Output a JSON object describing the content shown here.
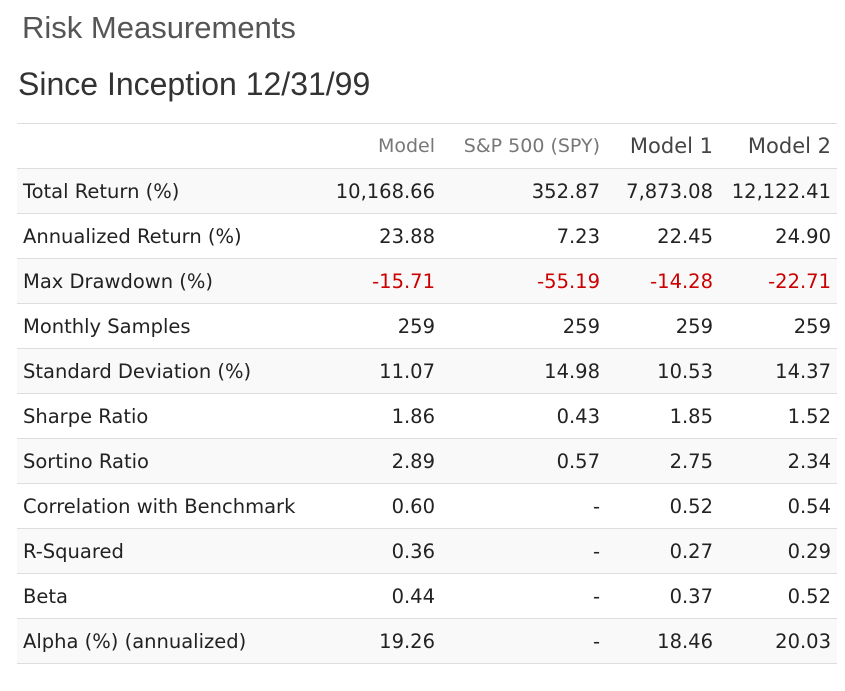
{
  "page_title": "Risk Measurements",
  "section_title": "Since Inception 12/31/99",
  "table": {
    "headers": [
      "",
      "Model",
      "S&P 500 (SPY)",
      "Model 1",
      "Model 2"
    ],
    "rows": [
      {
        "label": "Total Return (%)",
        "values": [
          "10,168.66",
          "352.87",
          "7,873.08",
          "12,122.41"
        ],
        "negative": false
      },
      {
        "label": "Annualized Return (%)",
        "values": [
          "23.88",
          "7.23",
          "22.45",
          "24.90"
        ],
        "negative": false
      },
      {
        "label": "Max Drawdown (%)",
        "values": [
          "-15.71",
          "-55.19",
          "-14.28",
          "-22.71"
        ],
        "negative": true
      },
      {
        "label": "Monthly Samples",
        "values": [
          "259",
          "259",
          "259",
          "259"
        ],
        "negative": false
      },
      {
        "label": "Standard Deviation (%)",
        "values": [
          "11.07",
          "14.98",
          "10.53",
          "14.37"
        ],
        "negative": false
      },
      {
        "label": "Sharpe Ratio",
        "values": [
          "1.86",
          "0.43",
          "1.85",
          "1.52"
        ],
        "negative": false
      },
      {
        "label": "Sortino Ratio",
        "values": [
          "2.89",
          "0.57",
          "2.75",
          "2.34"
        ],
        "negative": false
      },
      {
        "label": "Correlation with Benchmark",
        "values": [
          "0.60",
          "-",
          "0.52",
          "0.54"
        ],
        "negative": false
      },
      {
        "label": "R-Squared",
        "values": [
          "0.36",
          "-",
          "0.27",
          "0.29"
        ],
        "negative": false
      },
      {
        "label": "Beta",
        "values": [
          "0.44",
          "-",
          "0.37",
          "0.52"
        ],
        "negative": false
      },
      {
        "label": "Alpha (%) (annualized)",
        "values": [
          "19.26",
          "-",
          "18.46",
          "20.03"
        ],
        "negative": false
      }
    ]
  },
  "colors": {
    "negative": "#cc0000",
    "row_stripe": "#f9f9f9",
    "border": "#dddddd"
  }
}
